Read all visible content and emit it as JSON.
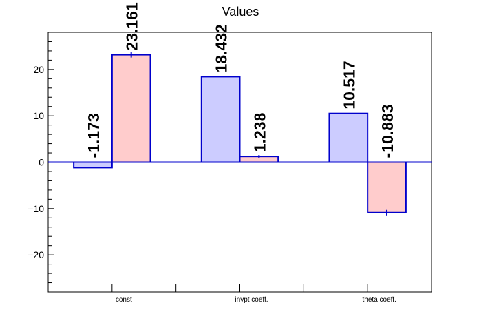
{
  "chart_data": {
    "type": "bar",
    "title": "Values",
    "xlabel": "",
    "ylabel": "",
    "categories": [
      "const",
      "invpt coeff.",
      "theta coeff."
    ],
    "series": [
      {
        "color": "#ccccff",
        "values": [
          -1.173,
          18.432,
          10.517
        ],
        "labels": [
          "-1.173",
          "18.432",
          "10.517"
        ]
      },
      {
        "color": "#ffcccc",
        "values": [
          23.161,
          1.238,
          -10.883
        ],
        "labels": [
          "23.161",
          "1.238",
          "-10.883"
        ],
        "errors": [
          0.6,
          0.3,
          0.6
        ]
      }
    ],
    "ylim": [
      -28,
      28
    ],
    "yticks": [
      -20,
      -10,
      0,
      10,
      20
    ],
    "ytick_labels": [
      "−20",
      "−10",
      "0",
      "10",
      "20"
    ],
    "edge_color": "#0000cc",
    "grid": false,
    "legend": "none"
  }
}
